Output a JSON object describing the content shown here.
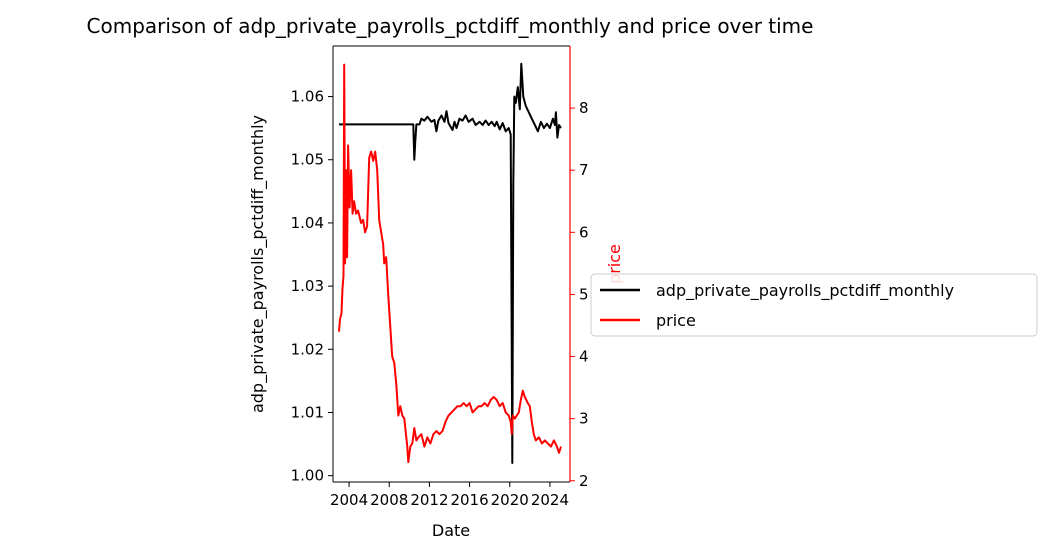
{
  "chart_data": {
    "type": "line",
    "title": "Comparison of adp_private_payrolls_pctdiff_monthly and price over time",
    "xlabel": "Date",
    "ylabel_left": "adp_private_payrolls_pctdiff_monthly",
    "ylabel_right": "price",
    "xlim": [
      2002.4,
      2026.0
    ],
    "ylim_left": [
      0.999,
      1.068
    ],
    "ylim_right": [
      1.98,
      9.0
    ],
    "x_ticks": [
      2004,
      2008,
      2012,
      2016,
      2020,
      2024
    ],
    "x_tick_labels": [
      "2004",
      "2008",
      "2012",
      "2016",
      "2020",
      "2024"
    ],
    "y_left_ticks": [
      1.0,
      1.01,
      1.02,
      1.03,
      1.04,
      1.05,
      1.06
    ],
    "y_left_tick_labels": [
      "1.00",
      "1.01",
      "1.02",
      "1.03",
      "1.04",
      "1.05",
      "1.06"
    ],
    "y_right_ticks": [
      2,
      3,
      4,
      5,
      6,
      7,
      8
    ],
    "y_right_tick_labels": [
      "2",
      "3",
      "4",
      "5",
      "6",
      "7",
      "8"
    ],
    "grid": false,
    "legend_placement": "center-right outside",
    "series": [
      {
        "name": "adp_private_payrolls_pctdiff_monthly",
        "axis": "left",
        "color": "#000000",
        "points": [
          [
            2003.0,
            1.0556
          ],
          [
            2006.0,
            1.0556
          ],
          [
            2009.0,
            1.0556
          ],
          [
            2010.4,
            1.0556
          ],
          [
            2010.5,
            1.05
          ],
          [
            2010.6,
            1.053
          ],
          [
            2010.7,
            1.0556
          ],
          [
            2011.0,
            1.0556
          ],
          [
            2011.2,
            1.0565
          ],
          [
            2011.5,
            1.0562
          ],
          [
            2011.8,
            1.0568
          ],
          [
            2012.2,
            1.056
          ],
          [
            2012.5,
            1.0563
          ],
          [
            2012.7,
            1.0545
          ],
          [
            2012.9,
            1.0562
          ],
          [
            2013.2,
            1.057
          ],
          [
            2013.5,
            1.056
          ],
          [
            2013.7,
            1.0577
          ],
          [
            2013.9,
            1.0558
          ],
          [
            2014.3,
            1.0547
          ],
          [
            2014.5,
            1.056
          ],
          [
            2014.7,
            1.055
          ],
          [
            2015.0,
            1.0565
          ],
          [
            2015.3,
            1.0562
          ],
          [
            2015.6,
            1.057
          ],
          [
            2015.9,
            1.056
          ],
          [
            2016.3,
            1.0565
          ],
          [
            2016.6,
            1.0555
          ],
          [
            2017.0,
            1.056
          ],
          [
            2017.3,
            1.0555
          ],
          [
            2017.6,
            1.0562
          ],
          [
            2017.9,
            1.0555
          ],
          [
            2018.2,
            1.056
          ],
          [
            2018.5,
            1.0553
          ],
          [
            2018.7,
            1.056
          ],
          [
            2019.0,
            1.0548
          ],
          [
            2019.3,
            1.0558
          ],
          [
            2019.6,
            1.0545
          ],
          [
            2019.9,
            1.055
          ],
          [
            2020.1,
            1.054
          ],
          [
            2020.25,
            1.002
          ],
          [
            2020.35,
            1.046
          ],
          [
            2020.45,
            1.06
          ],
          [
            2020.6,
            1.059
          ],
          [
            2020.8,
            1.0615
          ],
          [
            2021.0,
            1.058
          ],
          [
            2021.15,
            1.0652
          ],
          [
            2021.35,
            1.06
          ],
          [
            2021.6,
            1.0585
          ],
          [
            2021.9,
            1.0575
          ],
          [
            2022.2,
            1.0565
          ],
          [
            2022.5,
            1.0555
          ],
          [
            2022.8,
            1.0545
          ],
          [
            2023.1,
            1.056
          ],
          [
            2023.4,
            1.055
          ],
          [
            2023.7,
            1.0557
          ],
          [
            2024.0,
            1.055
          ],
          [
            2024.3,
            1.0565
          ],
          [
            2024.5,
            1.0555
          ],
          [
            2024.6,
            1.0575
          ],
          [
            2024.75,
            1.0535
          ],
          [
            2024.9,
            1.0555
          ],
          [
            2025.1,
            1.055
          ]
        ]
      },
      {
        "name": "price",
        "axis": "right",
        "color": "#ff0000",
        "points": [
          [
            2003.0,
            4.4
          ],
          [
            2003.1,
            4.6
          ],
          [
            2003.25,
            4.7
          ],
          [
            2003.35,
            5.1
          ],
          [
            2003.45,
            5.3
          ],
          [
            2003.52,
            8.7
          ],
          [
            2003.6,
            5.5
          ],
          [
            2003.7,
            7.0
          ],
          [
            2003.8,
            5.6
          ],
          [
            2003.9,
            7.4
          ],
          [
            2004.05,
            6.4
          ],
          [
            2004.2,
            7.0
          ],
          [
            2004.35,
            6.3
          ],
          [
            2004.5,
            6.5
          ],
          [
            2004.7,
            6.3
          ],
          [
            2004.9,
            6.35
          ],
          [
            2005.2,
            6.15
          ],
          [
            2005.4,
            6.2
          ],
          [
            2005.6,
            6.0
          ],
          [
            2005.8,
            6.1
          ],
          [
            2006.0,
            7.2
          ],
          [
            2006.2,
            7.3
          ],
          [
            2006.4,
            7.15
          ],
          [
            2006.6,
            7.3
          ],
          [
            2006.8,
            7.0
          ],
          [
            2007.0,
            6.2
          ],
          [
            2007.2,
            6.0
          ],
          [
            2007.4,
            5.8
          ],
          [
            2007.5,
            5.5
          ],
          [
            2007.7,
            5.6
          ],
          [
            2007.9,
            5.0
          ],
          [
            2008.1,
            4.5
          ],
          [
            2008.3,
            4.0
          ],
          [
            2008.5,
            3.9
          ],
          [
            2008.7,
            3.55
          ],
          [
            2008.9,
            3.05
          ],
          [
            2009.1,
            3.2
          ],
          [
            2009.3,
            3.05
          ],
          [
            2009.5,
            3.0
          ],
          [
            2009.7,
            2.7
          ],
          [
            2009.8,
            2.55
          ],
          [
            2009.9,
            2.3
          ],
          [
            2010.1,
            2.55
          ],
          [
            2010.3,
            2.6
          ],
          [
            2010.5,
            2.85
          ],
          [
            2010.7,
            2.65
          ],
          [
            2010.9,
            2.7
          ],
          [
            2011.2,
            2.75
          ],
          [
            2011.5,
            2.55
          ],
          [
            2011.8,
            2.7
          ],
          [
            2012.1,
            2.6
          ],
          [
            2012.4,
            2.75
          ],
          [
            2012.7,
            2.8
          ],
          [
            2013.0,
            2.75
          ],
          [
            2013.3,
            2.8
          ],
          [
            2013.6,
            2.95
          ],
          [
            2013.9,
            3.05
          ],
          [
            2014.2,
            3.1
          ],
          [
            2014.5,
            3.15
          ],
          [
            2014.8,
            3.2
          ],
          [
            2015.1,
            3.2
          ],
          [
            2015.4,
            3.25
          ],
          [
            2015.7,
            3.2
          ],
          [
            2016.0,
            3.25
          ],
          [
            2016.3,
            3.1
          ],
          [
            2016.6,
            3.15
          ],
          [
            2016.9,
            3.2
          ],
          [
            2017.2,
            3.2
          ],
          [
            2017.5,
            3.25
          ],
          [
            2017.8,
            3.2
          ],
          [
            2018.1,
            3.3
          ],
          [
            2018.4,
            3.35
          ],
          [
            2018.7,
            3.3
          ],
          [
            2019.0,
            3.2
          ],
          [
            2019.3,
            3.25
          ],
          [
            2019.6,
            3.1
          ],
          [
            2019.9,
            3.05
          ],
          [
            2020.1,
            2.95
          ],
          [
            2020.2,
            2.75
          ],
          [
            2020.3,
            3.05
          ],
          [
            2020.5,
            3.0
          ],
          [
            2020.7,
            3.05
          ],
          [
            2020.9,
            3.1
          ],
          [
            2021.1,
            3.3
          ],
          [
            2021.3,
            3.45
          ],
          [
            2021.5,
            3.35
          ],
          [
            2021.8,
            3.25
          ],
          [
            2022.0,
            3.2
          ],
          [
            2022.2,
            2.95
          ],
          [
            2022.4,
            2.75
          ],
          [
            2022.6,
            2.65
          ],
          [
            2022.9,
            2.7
          ],
          [
            2023.2,
            2.6
          ],
          [
            2023.5,
            2.65
          ],
          [
            2023.8,
            2.6
          ],
          [
            2024.1,
            2.55
          ],
          [
            2024.4,
            2.65
          ],
          [
            2024.7,
            2.55
          ],
          [
            2024.9,
            2.45
          ],
          [
            2025.1,
            2.55
          ]
        ]
      }
    ]
  }
}
